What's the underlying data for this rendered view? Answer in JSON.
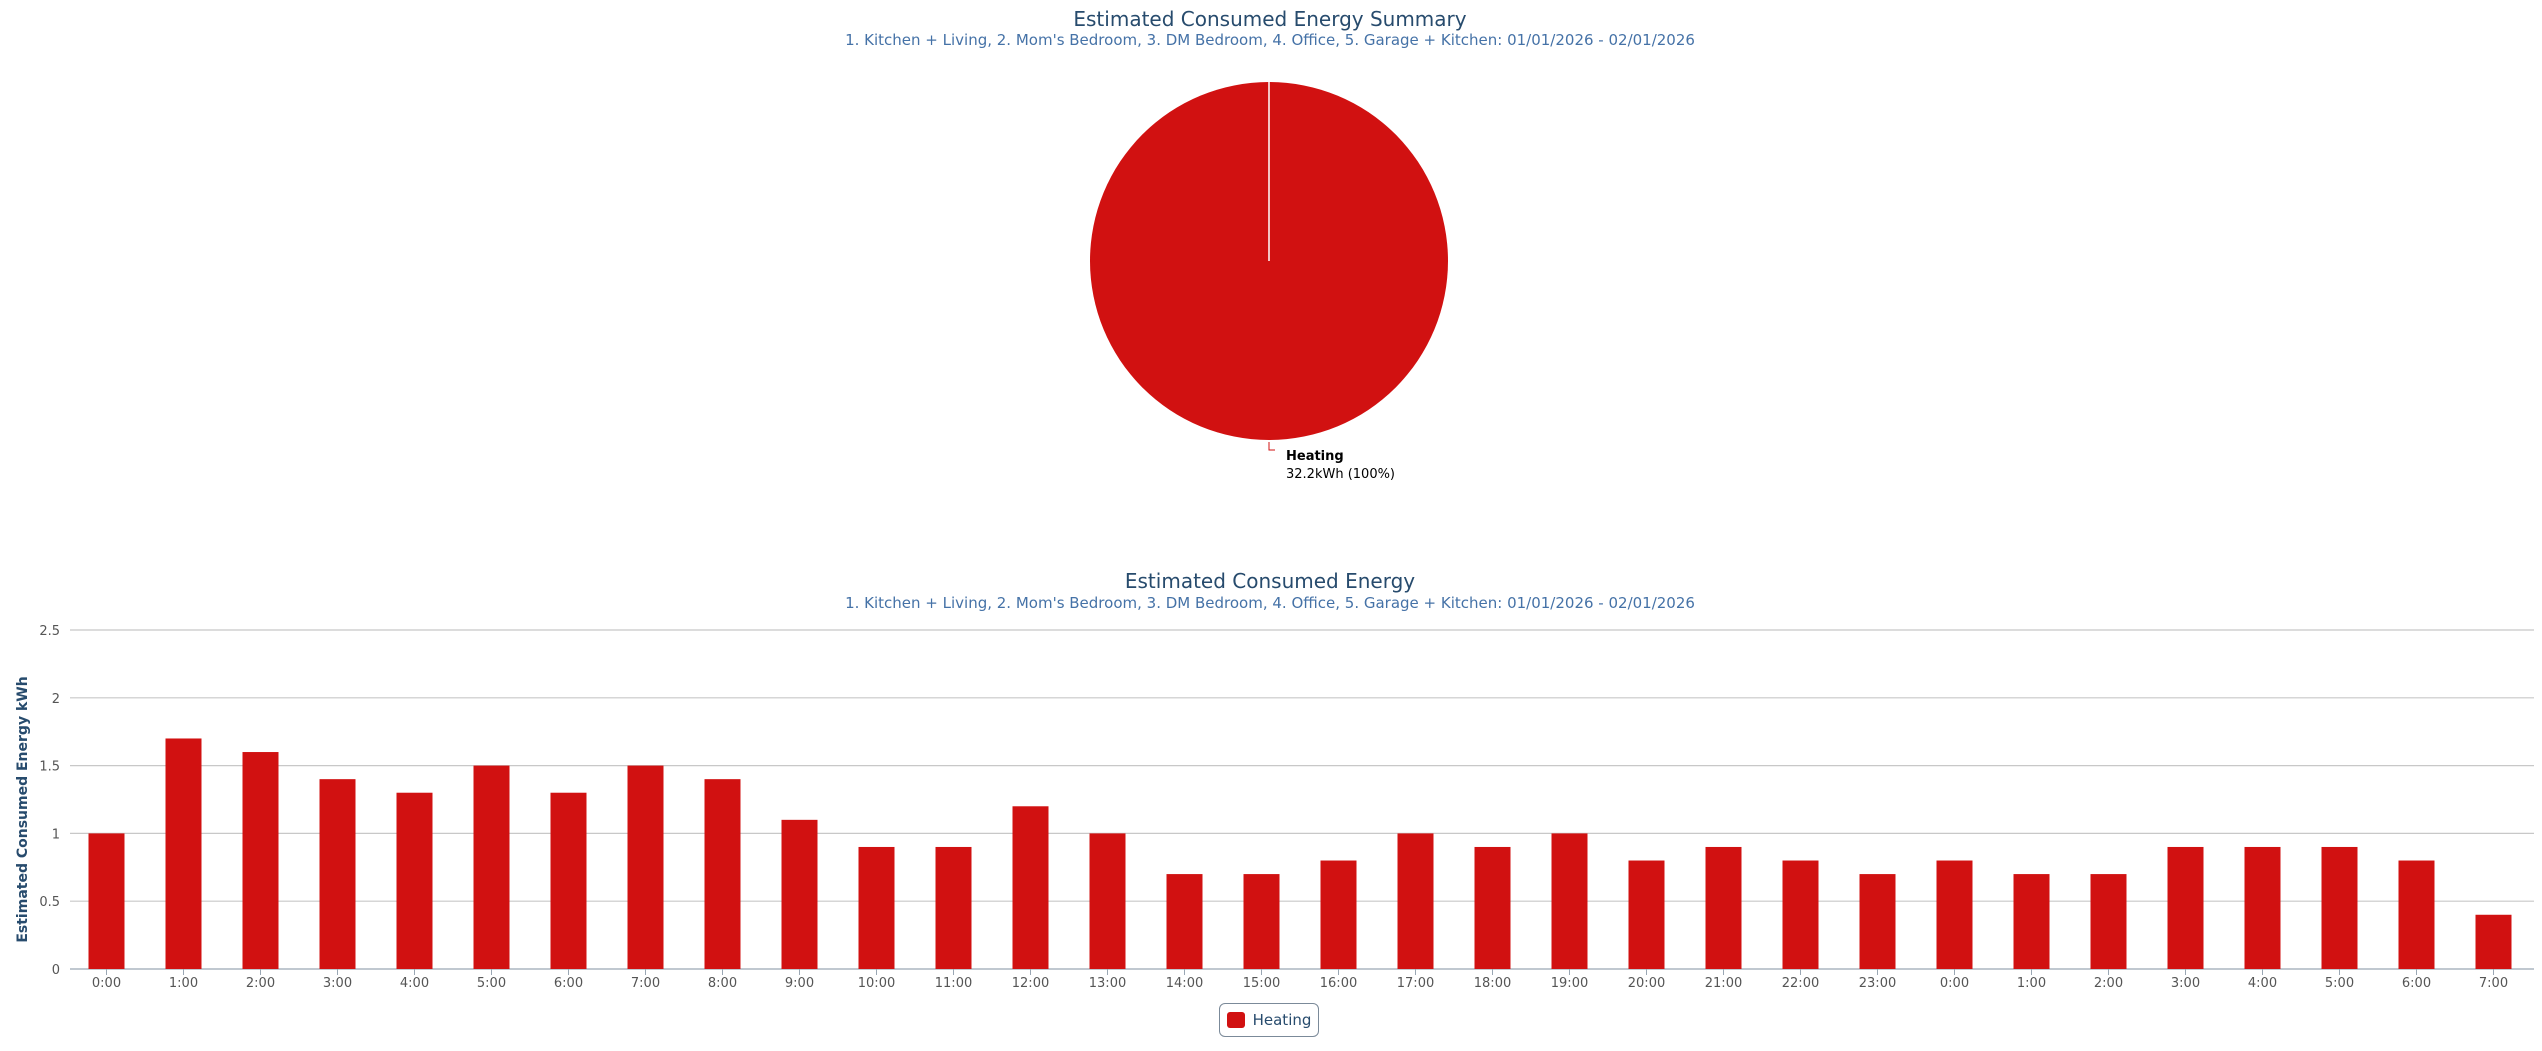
{
  "colors": {
    "heating": "#D11111",
    "title": "#274b6d",
    "subtitle": "#4572a7",
    "axis_text": "#555555",
    "grid": "#c8c8c8"
  },
  "pie_chart": {
    "title": "Estimated Consumed Energy Summary",
    "subtitle": "1. Kitchen + Living, 2. Mom's Bedroom, 3. DM Bedroom, 4. Office, 5. Garage + Kitchen: 01/01/2026 - 02/01/2026"
  },
  "bar_chart": {
    "title": "Estimated Consumed Energy",
    "subtitle": "1. Kitchen + Living, 2. Mom's Bedroom, 3. DM Bedroom, 4. Office, 5. Garage + Kitchen: 01/01/2026 - 02/01/2026"
  },
  "legend": {
    "label": "Heating"
  },
  "chart_data": [
    {
      "type": "pie",
      "title": "Estimated Consumed Energy Summary",
      "subtitle": "1. Kitchen + Living, 2. Mom's Bedroom, 3. DM Bedroom, 4. Office, 5. Garage + Kitchen: 01/01/2026 - 02/01/2026",
      "slices": [
        {
          "name": "Heating",
          "value": 32.2,
          "unit": "kWh",
          "percent": 100,
          "value_label": "32.2kWh (100%)"
        }
      ]
    },
    {
      "type": "bar",
      "title": "Estimated Consumed Energy",
      "subtitle": "1. Kitchen + Living, 2. Mom's Bedroom, 3. DM Bedroom, 4. Office, 5. Garage + Kitchen: 01/01/2026 - 02/01/2026",
      "ylabel": "Estimated Consumed Energy kWh",
      "xlabel": "",
      "ylim": [
        0,
        2.5
      ],
      "yticks": [
        "0",
        "0.5",
        "1",
        "1.5",
        "2",
        "2.5"
      ],
      "grid": true,
      "legend_position": "bottom-center",
      "categories": [
        "0:00",
        "1:00",
        "2:00",
        "3:00",
        "4:00",
        "5:00",
        "6:00",
        "7:00",
        "8:00",
        "9:00",
        "10:00",
        "11:00",
        "12:00",
        "13:00",
        "14:00",
        "15:00",
        "16:00",
        "17:00",
        "18:00",
        "19:00",
        "20:00",
        "21:00",
        "22:00",
        "23:00",
        "0:00",
        "1:00",
        "2:00",
        "3:00",
        "4:00",
        "5:00",
        "6:00",
        "7:00"
      ],
      "series": [
        {
          "name": "Heating",
          "values": [
            1.0,
            1.7,
            1.6,
            1.4,
            1.3,
            1.5,
            1.3,
            1.5,
            1.4,
            1.1,
            0.9,
            0.9,
            1.2,
            1.0,
            0.7,
            0.7,
            0.8,
            1.0,
            0.9,
            1.0,
            0.8,
            0.9,
            0.8,
            0.7,
            0.8,
            0.7,
            0.7,
            0.9,
            0.9,
            0.9,
            0.8,
            0.4
          ]
        }
      ]
    }
  ]
}
